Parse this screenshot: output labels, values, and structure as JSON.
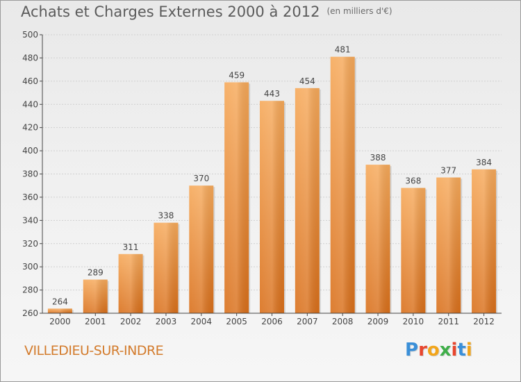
{
  "title": "Achats et Charges Externes 2000 à 2012",
  "subtitle": "(en milliers d'€)",
  "commune": "VILLEDIEU-SUR-INDRE",
  "brand": {
    "text": "Proxiti",
    "letter_colors": [
      "#3a8fd8",
      "#e8462e",
      "#f2a51a",
      "#3fae49",
      "#e8462e",
      "#3a8fd8",
      "#f2a51a"
    ]
  },
  "colors": {
    "bar_top": "#f6a95a",
    "bar_bottom": "#d96f1a",
    "axis": "#444444",
    "grid": "#d0d0d0"
  },
  "chart_data": {
    "type": "bar",
    "categories": [
      "2000",
      "2001",
      "2002",
      "2003",
      "2004",
      "2005",
      "2006",
      "2007",
      "2008",
      "2009",
      "2010",
      "2011",
      "2012"
    ],
    "values": [
      264,
      289,
      311,
      338,
      370,
      459,
      443,
      454,
      481,
      388,
      368,
      377,
      384
    ],
    "ylim": [
      260,
      500
    ],
    "yticks": [
      260,
      280,
      300,
      320,
      340,
      360,
      380,
      400,
      420,
      440,
      460,
      480,
      500
    ],
    "grid": true,
    "data_labels": true
  }
}
